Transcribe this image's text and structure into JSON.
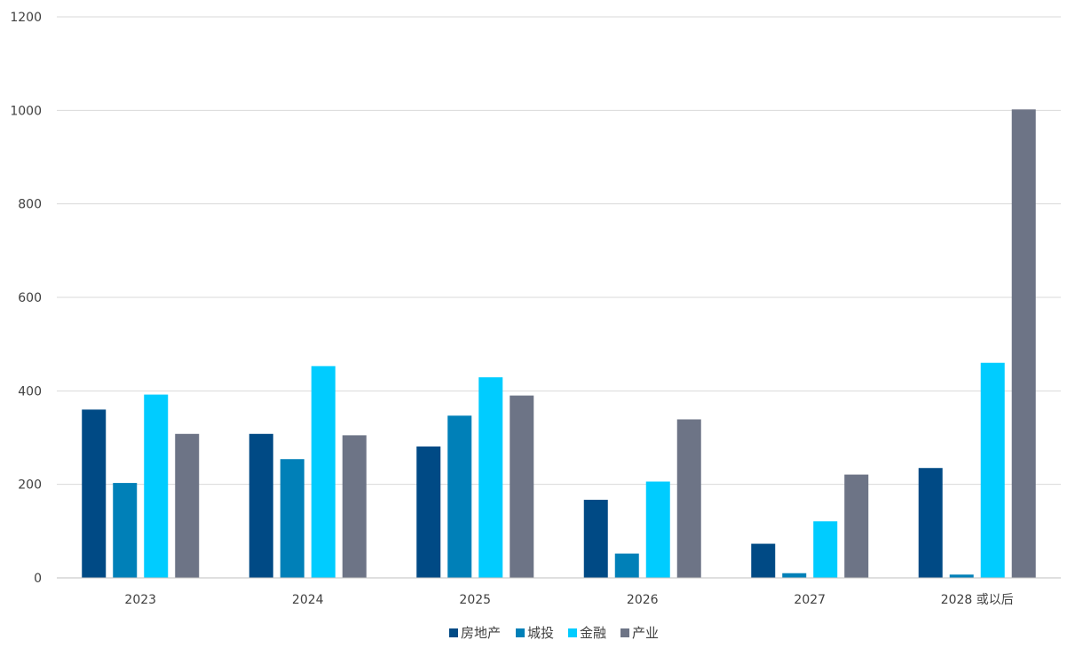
{
  "chart_data": {
    "type": "bar",
    "title": "",
    "xlabel": "",
    "ylabel": "",
    "ylim": [
      0,
      1200
    ],
    "yticks": [
      0,
      200,
      400,
      600,
      800,
      1000,
      1200
    ],
    "grid": true,
    "legend_position": "bottom",
    "categories": [
      "2023",
      "2024",
      "2025",
      "2026",
      "2027",
      "2028 或以后"
    ],
    "series": [
      {
        "name": "房地产",
        "color": "#004a85",
        "values": [
          360,
          308,
          281,
          167,
          73,
          235
        ]
      },
      {
        "name": "城投",
        "color": "#0080b8",
        "values": [
          203,
          254,
          347,
          52,
          10,
          7
        ]
      },
      {
        "name": "金融",
        "color": "#00ccff",
        "values": [
          392,
          453,
          429,
          206,
          121,
          460
        ]
      },
      {
        "name": "产业",
        "color": "#6d7486",
        "values": [
          308,
          305,
          390,
          339,
          221,
          1002
        ]
      }
    ]
  }
}
